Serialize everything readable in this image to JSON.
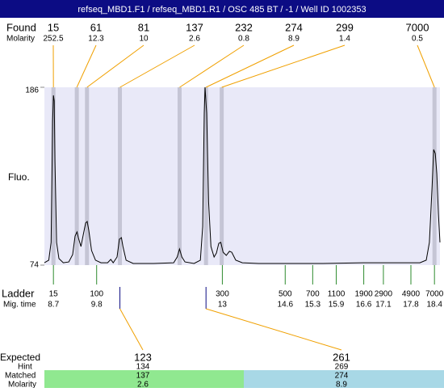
{
  "header": {
    "title": "refseq_MBD1.F1 / refseq_MBD1.R1 / OSC 485 BT / -1 / Well ID 1002353"
  },
  "found": {
    "label": "Found",
    "molarity_label": "Molarity",
    "peaks": [
      {
        "size": 15,
        "molarity": 252.5
      },
      {
        "size": 61,
        "molarity": 12.3
      },
      {
        "size": 81,
        "molarity": 10
      },
      {
        "size": 137,
        "molarity": 2.6
      },
      {
        "size": 232,
        "molarity": 0.8
      },
      {
        "size": 274,
        "molarity": 8.9
      },
      {
        "size": 299,
        "molarity": 1.4
      },
      {
        "size": 7000,
        "molarity": 0.5
      }
    ]
  },
  "chart_data": {
    "type": "line",
    "ylabel": "Fluo.",
    "color": "#000000",
    "x": [
      8.47,
      8.58,
      8.64,
      8.68,
      8.7,
      8.72,
      8.74,
      8.78,
      8.84,
      8.95,
      9.09,
      9.19,
      9.25,
      9.3,
      9.34,
      9.4,
      9.46,
      9.52,
      9.56,
      9.6,
      9.67,
      9.77,
      9.91,
      10.08,
      10.16,
      10.22,
      10.32,
      10.38,
      10.43,
      10.47,
      10.55,
      10.73,
      11.25,
      11.76,
      11.85,
      11.91,
      11.97,
      12.05,
      12.28,
      12.44,
      12.5,
      12.54,
      12.56,
      12.6,
      12.65,
      12.71,
      12.79,
      12.85,
      12.91,
      12.96,
      13.02,
      13.1,
      13.18,
      13.24,
      13.34,
      13.51,
      13.92,
      14.54,
      15.56,
      16.59,
      17.62,
      18.03,
      18.19,
      18.27,
      18.34,
      18.38,
      18.42,
      18.46,
      18.5,
      18.54
    ],
    "values": [
      75.5,
      77.1,
      88.3,
      164.6,
      180.9,
      177.4,
      139.2,
      88.3,
      78.1,
      75.5,
      76.0,
      80.6,
      92.3,
      94.9,
      90.8,
      85.7,
      93.3,
      100.5,
      101.5,
      95.9,
      83.2,
      77.1,
      75.5,
      75.5,
      77.6,
      75.5,
      79.1,
      90.3,
      91.3,
      85.7,
      77.1,
      75.0,
      75.0,
      75.5,
      79.1,
      84.2,
      79.1,
      76.0,
      75.0,
      77.1,
      98.4,
      169.7,
      186,
      169.7,
      113.7,
      85.7,
      79.1,
      81.6,
      87.7,
      88.3,
      82.1,
      80.1,
      82.7,
      82.1,
      77.1,
      75.5,
      75.0,
      75.0,
      75.0,
      75.5,
      75.5,
      75.5,
      77.1,
      88.3,
      123.9,
      146.8,
      144.3,
      131.5,
      106.1,
      88.3
    ],
    "xlim": [
      8.47,
      18.54
    ],
    "ylim": [
      74,
      186
    ],
    "yticks": [
      74,
      186
    ]
  },
  "ladder": {
    "label": "Ladder",
    "time_label": "Mig. time",
    "sizes": [
      15,
      100,
      300,
      500,
      700,
      1100,
      1900,
      2900,
      4900,
      7000
    ],
    "times": [
      8.7,
      9.8,
      13,
      14.6,
      15.3,
      15.9,
      16.6,
      17.1,
      17.8,
      18.4
    ]
  },
  "expected": {
    "label": "Expected",
    "hint_label": "Hint",
    "matched_label": "Matched",
    "molarity_label": "Molarity",
    "columns": [
      {
        "expected": 123,
        "hint": 134,
        "matched": 137,
        "molarity": 2.6
      },
      {
        "expected": 261,
        "hint": 269,
        "matched": 274,
        "molarity": 8.9
      }
    ]
  }
}
